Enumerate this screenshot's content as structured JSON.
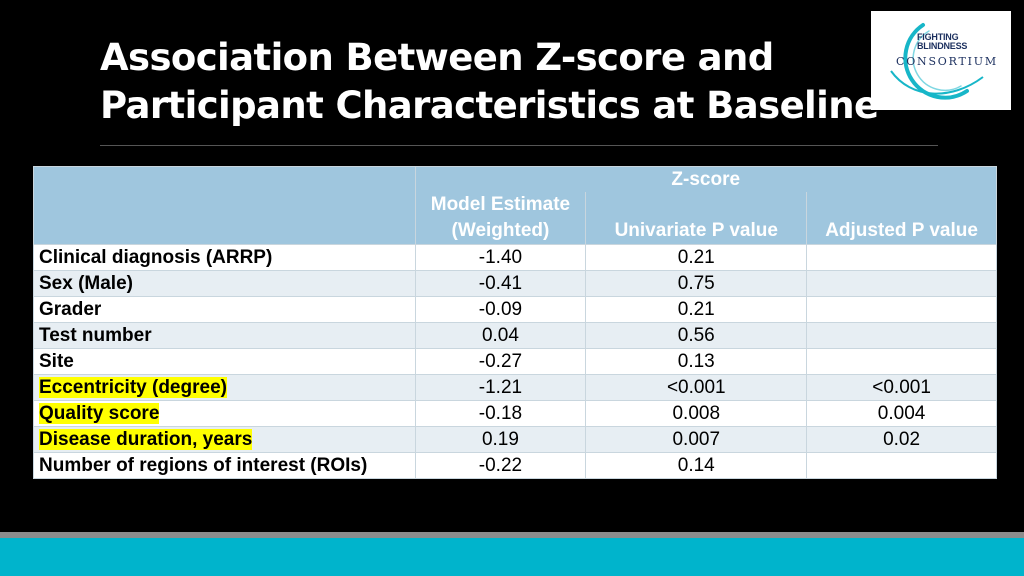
{
  "title": {
    "line1": "Association Between Z-score and",
    "line2": "Participant Characteristics at Baseline"
  },
  "logo": {
    "line1": "FIGHTING",
    "line2": "BLINDNESS",
    "name": "CONSORTIUM",
    "ring_color": "#17b6c8",
    "text_color": "#1b2f5e"
  },
  "table": {
    "group_header": "Z-score",
    "columns": [
      "Model Estimate (Weighted)",
      "Univariate P value",
      "Adjusted P value"
    ],
    "rows": [
      {
        "label": "Clinical diagnosis (ARRP)",
        "estimate": "-1.40",
        "univariate": "0.21",
        "adjusted": ""
      },
      {
        "label": "Sex (Male)",
        "estimate": "-0.41",
        "univariate": "0.75",
        "adjusted": ""
      },
      {
        "label": "Grader",
        "estimate": "-0.09",
        "univariate": "0.21",
        "adjusted": ""
      },
      {
        "label": "Test number",
        "estimate": "0.04",
        "univariate": "0.56",
        "adjusted": ""
      },
      {
        "label": "Site",
        "estimate": "-0.27",
        "univariate": "0.13",
        "adjusted": ""
      },
      {
        "label": "Eccentricity (degree)",
        "estimate": "-1.21",
        "univariate": "<0.001",
        "adjusted": "<0.001"
      },
      {
        "label": "Quality score",
        "estimate": "-0.18",
        "univariate": "0.008",
        "adjusted": "0.004"
      },
      {
        "label": "Disease duration, years",
        "estimate": "0.19",
        "univariate": "0.007",
        "adjusted": "0.02"
      },
      {
        "label": "Number of regions of interest (ROIs)",
        "estimate": "-0.22",
        "univariate": "0.14",
        "adjusted": ""
      }
    ]
  },
  "colors": {
    "header_bg": "#9fc6de",
    "highlight": "#ffff00",
    "footer_band": "#00b4cc"
  }
}
